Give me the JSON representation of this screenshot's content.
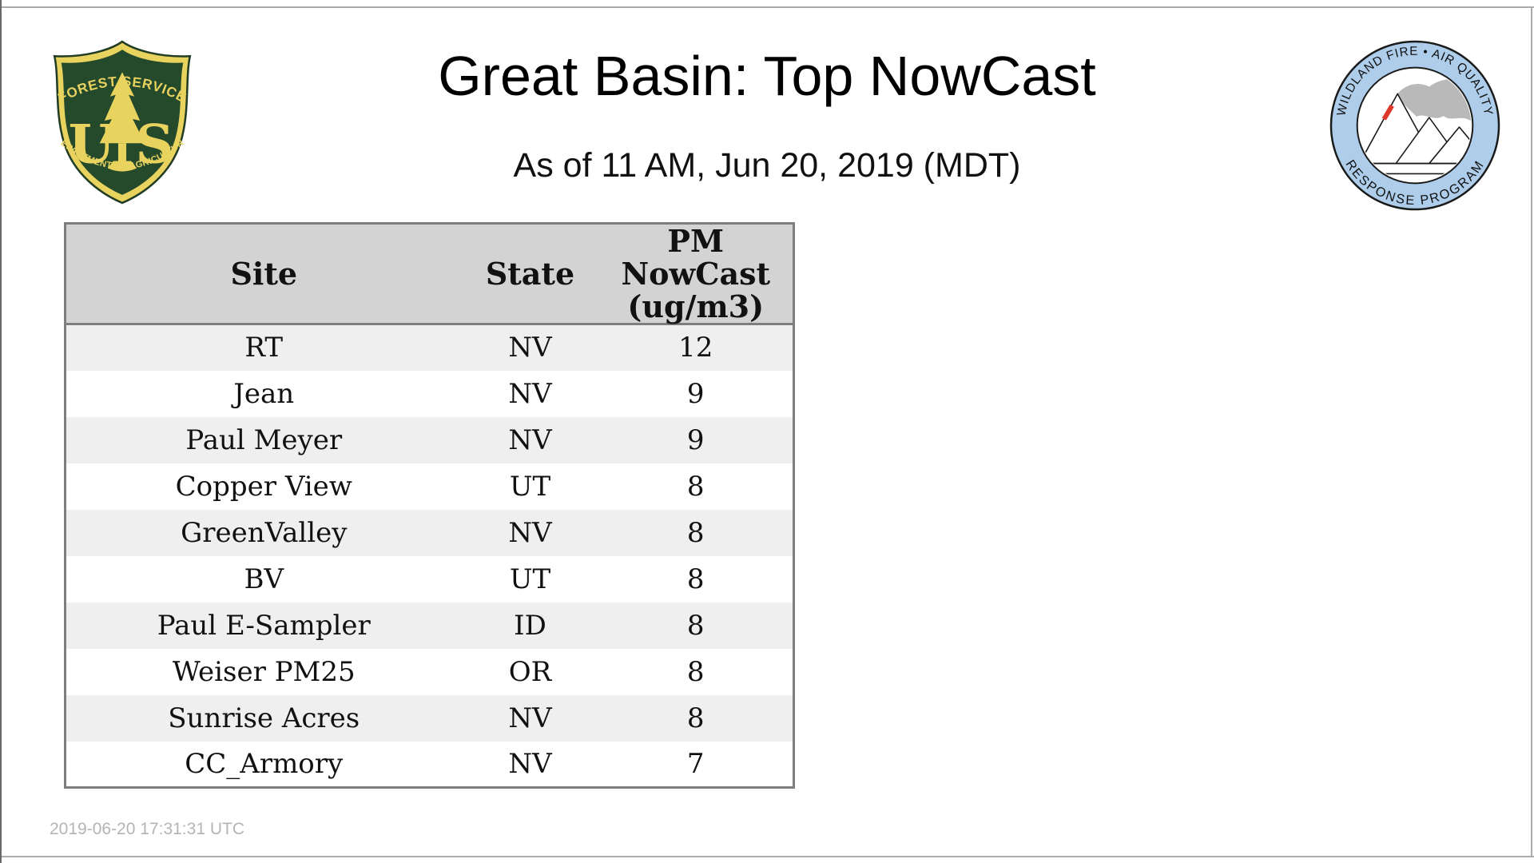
{
  "page": {
    "title": "Great Basin: Top NowCast",
    "subtitle": "As of 11 AM, Jun 20, 2019 (MDT)",
    "footer_timestamp": "2019-06-20 17:31:31 UTC"
  },
  "logos": {
    "forest_service": {
      "arc_top": "FOREST SERVICE",
      "letter_left": "U",
      "letter_right": "S",
      "arc_bottom": "DEPARTMENT OF AGRICULTURE"
    },
    "wfaqrp": {
      "arc_top": "WILDLAND FIRE • AIR QUALITY",
      "arc_bottom": "RESPONSE PROGRAM"
    }
  },
  "table": {
    "headers": {
      "site": "Site",
      "state": "State",
      "pm_lines": "PM\nNowCast\n(ug/m3)"
    },
    "rows": [
      {
        "site": "RT",
        "state": "NV",
        "pm": "12"
      },
      {
        "site": "Jean",
        "state": "NV",
        "pm": "9"
      },
      {
        "site": "Paul Meyer",
        "state": "NV",
        "pm": "9"
      },
      {
        "site": "Copper View",
        "state": "UT",
        "pm": "8"
      },
      {
        "site": "GreenValley",
        "state": "NV",
        "pm": "8"
      },
      {
        "site": "BV",
        "state": "UT",
        "pm": "8"
      },
      {
        "site": "Paul E-Sampler",
        "state": "ID",
        "pm": "8"
      },
      {
        "site": "Weiser PM25",
        "state": "OR",
        "pm": "8"
      },
      {
        "site": "Sunrise Acres",
        "state": "NV",
        "pm": "8"
      },
      {
        "site": "CC_Armory",
        "state": "NV",
        "pm": "7"
      }
    ]
  },
  "colors": {
    "accent_border_gray": "#7e7e7e",
    "table_header_bg": "#d3d3d3",
    "row_bg": "#ffffff",
    "row_alt_bg": "#efefef",
    "fs_green": "#24492b",
    "fs_gold": "#e9d35f",
    "wfaqrp_ring_blue": "#aecdea",
    "smoke_gray": "#b9b9b9",
    "flame_red": "#e0372b",
    "timestamp_gray": "#b4b4b4",
    "page_frame_gray": "#ababab",
    "page_frame_left_dark": "#686868"
  }
}
